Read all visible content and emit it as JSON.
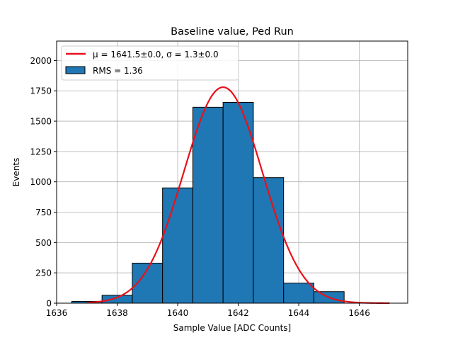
{
  "chart_data": {
    "type": "bar",
    "title": "Baseline value, Ped Run",
    "xlabel": "Sample Value [ADC Counts]",
    "ylabel": "Events",
    "xlim": [
      1636,
      1647.6
    ],
    "ylim": [
      0,
      2160
    ],
    "xticks": [
      1636,
      1638,
      1640,
      1642,
      1644,
      1646
    ],
    "yticks": [
      0,
      250,
      500,
      750,
      1000,
      1250,
      1500,
      1750,
      2000
    ],
    "grid": true,
    "legend_position": "top-left",
    "histogram": {
      "name": "RMS = 1.36",
      "color": "#1f77b4",
      "bins": [
        {
          "x0": 1636.5,
          "x1": 1637.5,
          "count": 15
        },
        {
          "x0": 1637.5,
          "x1": 1638.5,
          "count": 65
        },
        {
          "x0": 1638.5,
          "x1": 1639.5,
          "count": 330
        },
        {
          "x0": 1639.5,
          "x1": 1640.5,
          "count": 950
        },
        {
          "x0": 1640.5,
          "x1": 1641.5,
          "count": 1615
        },
        {
          "x0": 1641.5,
          "x1": 1642.5,
          "count": 1655
        },
        {
          "x0": 1642.5,
          "x1": 1643.5,
          "count": 1035
        },
        {
          "x0": 1643.5,
          "x1": 1644.5,
          "count": 165
        },
        {
          "x0": 1644.5,
          "x1": 1645.5,
          "count": 95
        }
      ]
    },
    "fit": {
      "name": "μ = 1641.5±0.0, σ = 1.3±0.0",
      "color": "#e8111b",
      "mu": 1641.5,
      "sigma": 1.3,
      "amplitude": 1780,
      "x_range": [
        1637,
        1647
      ]
    }
  }
}
